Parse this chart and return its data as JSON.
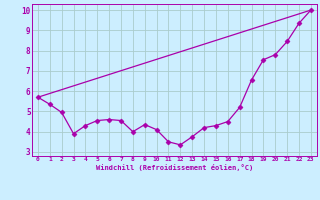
{
  "xlabel": "Windchill (Refroidissement éolien,°C)",
  "xlim": [
    -0.5,
    23.5
  ],
  "ylim": [
    2.8,
    10.3
  ],
  "xticks": [
    0,
    1,
    2,
    3,
    4,
    5,
    6,
    7,
    8,
    9,
    10,
    11,
    12,
    13,
    14,
    15,
    16,
    17,
    18,
    19,
    20,
    21,
    22,
    23
  ],
  "yticks": [
    3,
    4,
    5,
    6,
    7,
    8,
    9,
    10
  ],
  "bg_color": "#cceeff",
  "grid_color": "#aacccc",
  "line_color": "#aa00aa",
  "line1_x": [
    0,
    1,
    2,
    3,
    4,
    5,
    6,
    7,
    8,
    9,
    10,
    11,
    12,
    13,
    14,
    15,
    16,
    17,
    18,
    19,
    20,
    21,
    22,
    23
  ],
  "line1_y": [
    5.7,
    5.35,
    4.95,
    3.9,
    4.3,
    4.55,
    4.6,
    4.55,
    4.0,
    4.35,
    4.1,
    3.5,
    3.35,
    3.75,
    4.2,
    4.3,
    4.5,
    5.2,
    6.55,
    7.55,
    7.8,
    8.45,
    9.35,
    10.0
  ],
  "line2_x": [
    0,
    23
  ],
  "line2_y": [
    5.7,
    10.0
  ],
  "marker": "D",
  "markersize": 2.5,
  "linewidth": 0.9
}
